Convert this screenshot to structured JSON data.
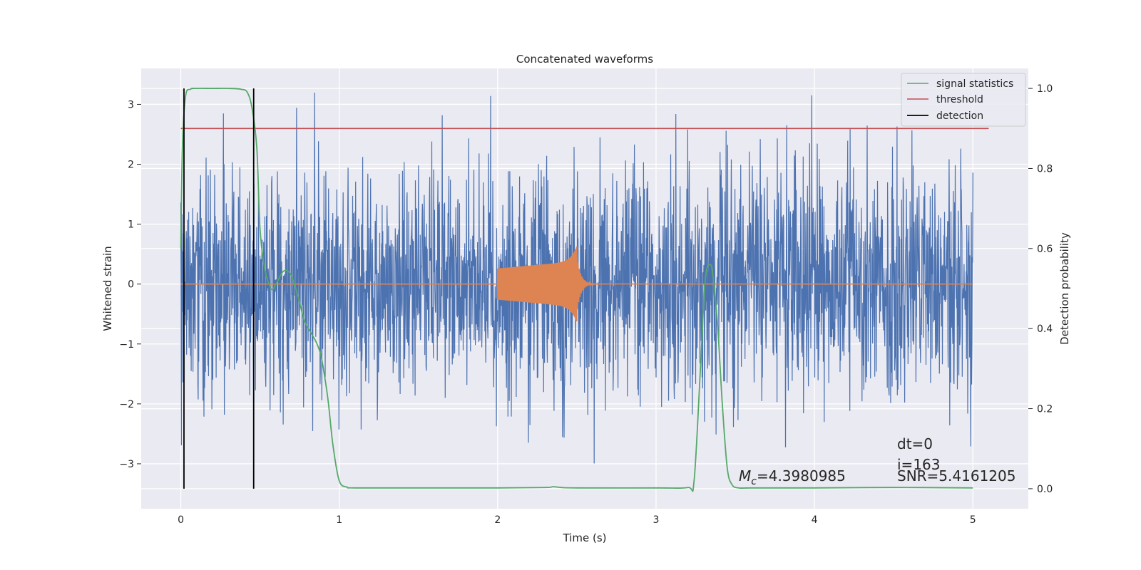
{
  "chart_data": {
    "type": "line",
    "title": "Concatenated waveforms",
    "xlabel": "Time (s)",
    "ylabel_left": "Whitened strain",
    "ylabel_right": "Detection probability",
    "xlim": [
      -0.25,
      5.35
    ],
    "ylim_left": [
      -3.75,
      3.6
    ],
    "ylim_right": [
      -0.05,
      1.05
    ],
    "xticks": [
      0,
      1,
      2,
      3,
      4,
      5
    ],
    "yticks_left": [
      -3,
      -2,
      -1,
      0,
      1,
      2,
      3
    ],
    "yticks_right": [
      0.0,
      0.2,
      0.4,
      0.6,
      0.8,
      1.0
    ],
    "grid": true,
    "legend_position": "top-right",
    "colors": {
      "strain": "#4c72b0",
      "template": "#dd8452",
      "signal_statistics": "#55a868",
      "threshold": "#c44e52",
      "detection": "#000000",
      "background": "#eaeaf2"
    },
    "series": [
      {
        "name": "signal statistics",
        "axis": "right",
        "x": [
          0.0,
          0.01,
          0.03,
          0.06,
          0.1,
          0.2,
          0.3,
          0.38,
          0.42,
          0.45,
          0.48,
          0.5,
          0.53,
          0.57,
          0.6,
          0.64,
          0.67,
          0.7,
          0.74,
          0.78,
          0.82,
          0.85,
          0.88,
          0.9,
          0.93,
          0.96,
          1.0,
          1.05,
          1.1,
          1.5,
          2.0,
          2.3,
          2.35,
          2.4,
          2.5,
          3.0,
          3.2,
          3.24,
          3.28,
          3.31,
          3.34,
          3.36,
          3.39,
          3.42,
          3.45,
          3.48,
          3.52,
          3.6,
          4.0,
          4.5,
          5.0
        ],
        "y": [
          0.6,
          0.85,
          0.98,
          0.998,
          1.0,
          1.0,
          1.0,
          0.998,
          0.99,
          0.95,
          0.85,
          0.65,
          0.55,
          0.5,
          0.51,
          0.54,
          0.545,
          0.53,
          0.48,
          0.42,
          0.39,
          0.37,
          0.34,
          0.3,
          0.22,
          0.11,
          0.02,
          0.004,
          0.002,
          0.002,
          0.002,
          0.003,
          0.005,
          0.003,
          0.002,
          0.002,
          0.003,
          0.02,
          0.3,
          0.52,
          0.56,
          0.53,
          0.4,
          0.2,
          0.05,
          0.01,
          0.002,
          0.002,
          0.002,
          0.003,
          0.002
        ]
      },
      {
        "name": "threshold",
        "axis": "right",
        "x": [
          0.0,
          5.1
        ],
        "y": [
          0.9,
          0.9
        ]
      },
      {
        "name": "detection",
        "axis": "right",
        "x": [
          0.02,
          0.46
        ],
        "y_range": [
          0.0,
          1.0
        ]
      },
      {
        "axis": "left",
        "x_range": [
          0.0,
          5.0
        ],
        "y_range_approx": [
          -3.3,
          3.2
        ]
      },
      {
        "axis": "left",
        "x_range": [
          2.0,
          2.5
        ],
        "y_range_approx": [
          -0.8,
          0.65
        ]
      }
    ],
    "annotations": {
      "mc_value": "=4.3980985",
      "dt": "dt=0",
      "i": "i=163",
      "snr": "SNR=5.4161205"
    }
  }
}
